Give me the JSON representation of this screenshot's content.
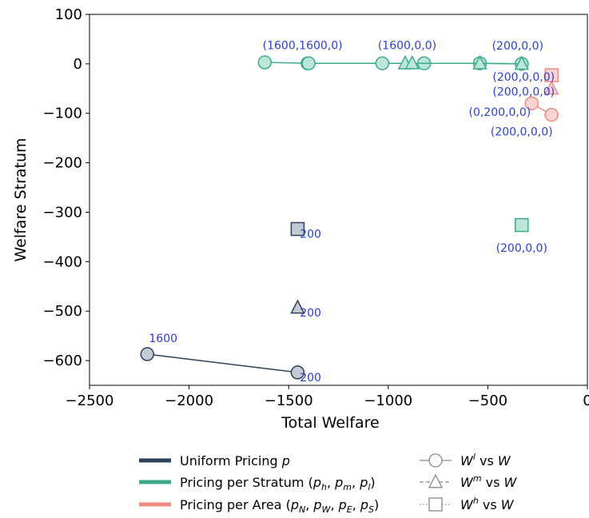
{
  "chart_data": {
    "type": "scatter",
    "xlabel": "Total Welfare",
    "ylabel": "Welfare Stratum",
    "xlim": [
      -2500,
      0
    ],
    "ylim": [
      -650,
      100
    ],
    "x_ticks": [
      -2500,
      -2000,
      -1500,
      -1000,
      -500,
      0
    ],
    "x_tick_labels": [
      "−2500",
      "−2000",
      "−1500",
      "−1000",
      "−500",
      "0"
    ],
    "y_ticks": [
      100,
      0,
      -100,
      -200,
      -300,
      -400,
      -500,
      -600
    ],
    "y_tick_labels": [
      "100",
      "0",
      "−100",
      "−200",
      "−300",
      "−400",
      "−500",
      "−600"
    ],
    "grid": false,
    "legend_placement": "below",
    "series": [
      {
        "name": "Uniform Pricing p",
        "color": "#2e4057",
        "fill": "#c3cbd6",
        "marker": "circle",
        "connected": true,
        "points": [
          [
            -2210,
            -587
          ],
          [
            -1455,
            -624
          ]
        ]
      },
      {
        "name": "Uniform Pricing p",
        "color": "#2e4057",
        "fill": "#c3cbd6",
        "marker": "triangle",
        "connected": false,
        "points": [
          [
            -1455,
            -493
          ]
        ]
      },
      {
        "name": "Uniform Pricing p",
        "color": "#2e4057",
        "fill": "#c3cbd6",
        "marker": "square",
        "connected": false,
        "points": [
          [
            -1455,
            -334
          ]
        ]
      },
      {
        "name": "Pricing per Stratum (p_h, p_m, p_l)",
        "color": "#3daa8c",
        "fill": "#bde6da",
        "marker": "circle",
        "connected": true,
        "points": [
          [
            -1620,
            3
          ],
          [
            -1405,
            1
          ],
          [
            -1400,
            1
          ],
          [
            -1030,
            1
          ],
          [
            -820,
            1
          ],
          [
            -540,
            1
          ],
          [
            -330,
            0
          ]
        ]
      },
      {
        "name": "Pricing per Stratum (p_h, p_m, p_l)",
        "color": "#3daa8c",
        "fill": "#bde6da",
        "marker": "triangle",
        "connected": true,
        "points": [
          [
            -915,
            1
          ],
          [
            -880,
            1
          ],
          [
            -540,
            1
          ],
          [
            -330,
            0
          ]
        ]
      },
      {
        "name": "Pricing per Stratum (p_h, p_m, p_l)",
        "color": "#3daa8c",
        "fill": "#bde6da",
        "marker": "square",
        "connected": false,
        "points": [
          [
            -330,
            -326
          ]
        ]
      },
      {
        "name": "Pricing per Area (p_N, p_W, p_E, p_S)",
        "color": "#f08c84",
        "fill": "#fad4d0",
        "marker": "circle",
        "connected": true,
        "points": [
          [
            -280,
            -80
          ],
          [
            -180,
            -103
          ]
        ]
      },
      {
        "name": "Pricing per Area (p_N, p_W, p_E, p_S)",
        "color": "#f08c84",
        "fill": "#fad4d0",
        "marker": "triangle",
        "connected": false,
        "points": [
          [
            -180,
            -50
          ]
        ]
      },
      {
        "name": "Pricing per Area (p_N, p_W, p_E, p_S)",
        "color": "#f08c84",
        "fill": "#fad4d0",
        "marker": "square",
        "connected": false,
        "points": [
          [
            -180,
            -23
          ]
        ]
      }
    ],
    "annotations": [
      {
        "text": "1600",
        "x": -2130,
        "y": -555
      },
      {
        "text": "200",
        "x": -1390,
        "y": -634
      },
      {
        "text": "200",
        "x": -1390,
        "y": -503
      },
      {
        "text": "200",
        "x": -1390,
        "y": -344
      },
      {
        "text": "(1600,1600,0)",
        "x": -1430,
        "y": 38
      },
      {
        "text": "(1600,0,0)",
        "x": -905,
        "y": 38
      },
      {
        "text": "(200,0,0)",
        "x": -350,
        "y": 37
      },
      {
        "text": "(200,0,0,0)",
        "x": -320,
        "y": -26
      },
      {
        "text": "(200,0,0,0)",
        "x": -320,
        "y": -56
      },
      {
        "text": "(0,200,0,0)",
        "x": -440,
        "y": -97
      },
      {
        "text": "(200,0,0,0)",
        "x": -330,
        "y": -137
      },
      {
        "text": "(200,0,0)",
        "x": -330,
        "y": -372
      }
    ],
    "annotation_color": "#2b3fd6"
  },
  "legend": {
    "pricing": [
      {
        "id": "uniform",
        "color": "#2e4057",
        "label": "Uniform Pricing p"
      },
      {
        "id": "stratum",
        "color": "#3daa8c",
        "label": "Pricing per Stratum (p_h, p_m, p_l)"
      },
      {
        "id": "area",
        "color": "#f08c84",
        "label": "Pricing per Area (p_N, p_W, p_E, p_S)"
      }
    ],
    "markers": [
      {
        "id": "circle",
        "label": "W^l vs W"
      },
      {
        "id": "triangle",
        "label": "W^m vs W"
      },
      {
        "id": "square",
        "label": "W^h vs W"
      }
    ]
  }
}
